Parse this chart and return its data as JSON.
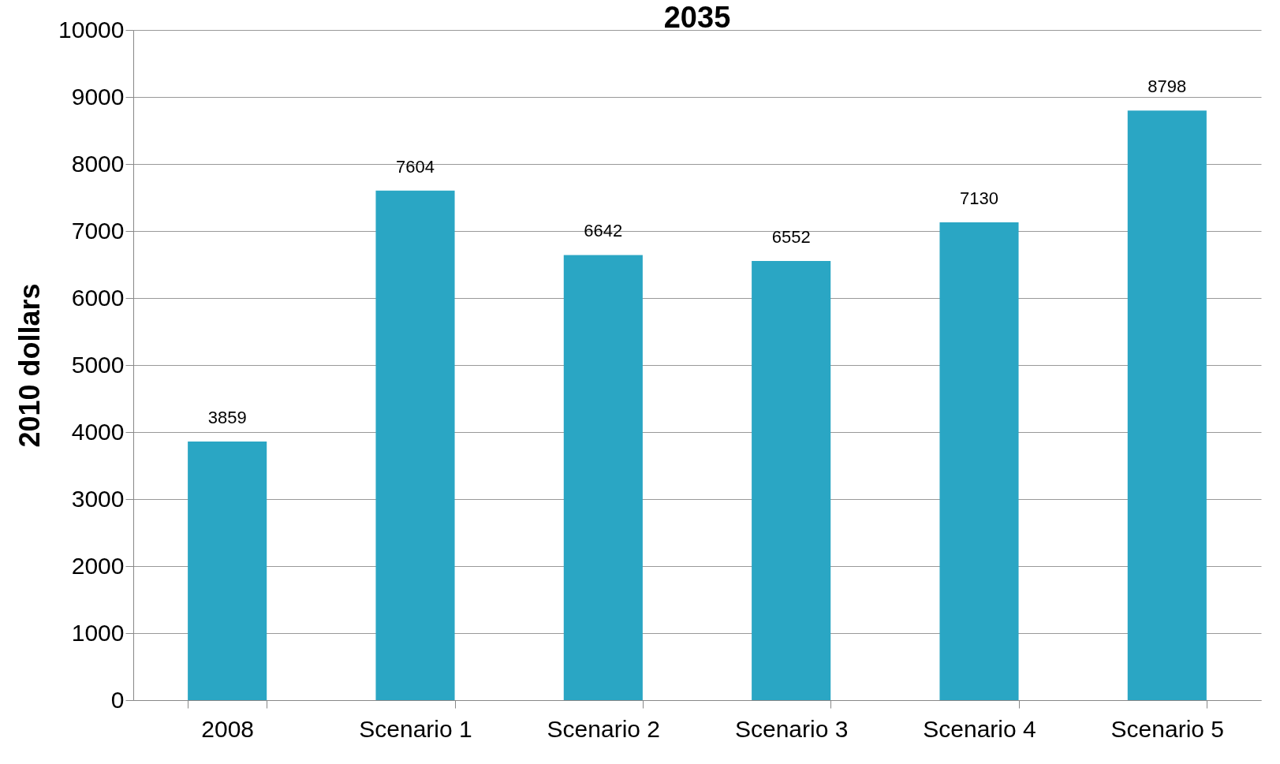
{
  "chart_data": {
    "type": "bar",
    "title": "2035",
    "ylabel": "2010 dollars",
    "categories": [
      "2008",
      "Scenario 1",
      "Scenario 2",
      "Scenario 3",
      "Scenario 4",
      "Scenario 5"
    ],
    "values": [
      3859,
      7604,
      6642,
      6552,
      7130,
      8798
    ],
    "color": "#2aa6c4",
    "ylim": [
      0,
      10000
    ],
    "yticks": [
      0,
      1000,
      2000,
      3000,
      4000,
      5000,
      6000,
      7000,
      8000,
      9000,
      10000
    ],
    "grid": "y",
    "data_labels": true
  }
}
